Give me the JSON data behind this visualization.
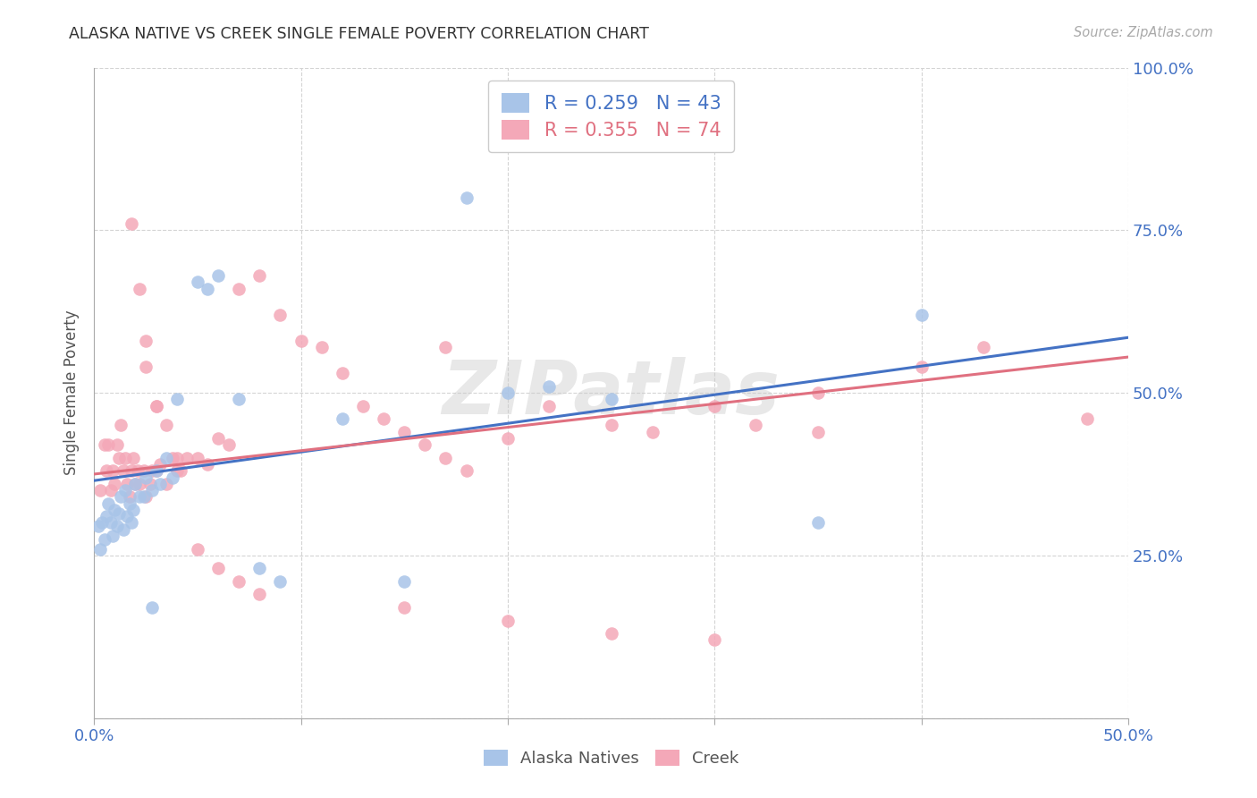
{
  "title": "ALASKA NATIVE VS CREEK SINGLE FEMALE POVERTY CORRELATION CHART",
  "source": "Source: ZipAtlas.com",
  "ylabel_label": "Single Female Poverty",
  "x_min": 0.0,
  "x_max": 0.5,
  "y_min": 0.0,
  "y_max": 1.0,
  "x_tick_positions": [
    0.0,
    0.1,
    0.2,
    0.3,
    0.4,
    0.5
  ],
  "x_tick_labels": [
    "0.0%",
    "",
    "",
    "",
    "",
    "50.0%"
  ],
  "y_tick_positions": [
    0.0,
    0.25,
    0.5,
    0.75,
    1.0
  ],
  "y_tick_labels": [
    "",
    "25.0%",
    "50.0%",
    "75.0%",
    "100.0%"
  ],
  "alaska_R": 0.259,
  "alaska_N": 43,
  "creek_R": 0.355,
  "creek_N": 74,
  "alaska_color": "#a8c4e8",
  "creek_color": "#f4a8b8",
  "alaska_line_color": "#4472c4",
  "creek_line_color": "#e07080",
  "watermark": "ZIPatlas",
  "alaska_line_x0": 0.0,
  "alaska_line_y0": 0.365,
  "alaska_line_x1": 0.5,
  "alaska_line_y1": 0.585,
  "creek_line_x0": 0.0,
  "creek_line_y0": 0.375,
  "creek_line_x1": 0.5,
  "creek_line_y1": 0.555,
  "alaska_x": [
    0.002,
    0.003,
    0.004,
    0.005,
    0.006,
    0.007,
    0.008,
    0.009,
    0.01,
    0.011,
    0.012,
    0.013,
    0.014,
    0.015,
    0.016,
    0.017,
    0.018,
    0.019,
    0.02,
    0.022,
    0.024,
    0.025,
    0.028,
    0.03,
    0.032,
    0.035,
    0.038,
    0.04,
    0.05,
    0.055,
    0.06,
    0.07,
    0.08,
    0.09,
    0.12,
    0.15,
    0.18,
    0.2,
    0.22,
    0.25,
    0.35,
    0.4,
    0.028
  ],
  "alaska_y": [
    0.295,
    0.26,
    0.3,
    0.275,
    0.31,
    0.33,
    0.3,
    0.28,
    0.32,
    0.295,
    0.315,
    0.34,
    0.29,
    0.35,
    0.31,
    0.33,
    0.3,
    0.32,
    0.36,
    0.34,
    0.34,
    0.37,
    0.35,
    0.38,
    0.36,
    0.4,
    0.37,
    0.49,
    0.67,
    0.66,
    0.68,
    0.49,
    0.23,
    0.21,
    0.46,
    0.21,
    0.8,
    0.5,
    0.51,
    0.49,
    0.3,
    0.62,
    0.17
  ],
  "creek_x": [
    0.003,
    0.005,
    0.006,
    0.007,
    0.008,
    0.009,
    0.01,
    0.011,
    0.012,
    0.013,
    0.014,
    0.015,
    0.016,
    0.017,
    0.018,
    0.019,
    0.02,
    0.021,
    0.022,
    0.024,
    0.025,
    0.027,
    0.028,
    0.03,
    0.032,
    0.035,
    0.038,
    0.04,
    0.042,
    0.045,
    0.05,
    0.055,
    0.06,
    0.065,
    0.07,
    0.08,
    0.09,
    0.1,
    0.11,
    0.12,
    0.13,
    0.14,
    0.15,
    0.16,
    0.17,
    0.18,
    0.2,
    0.22,
    0.25,
    0.27,
    0.3,
    0.32,
    0.35,
    0.4,
    0.43,
    0.48,
    0.018,
    0.022,
    0.025,
    0.03,
    0.025,
    0.03,
    0.035,
    0.04,
    0.05,
    0.06,
    0.07,
    0.08,
    0.15,
    0.2,
    0.25,
    0.3,
    0.17,
    0.35
  ],
  "creek_y": [
    0.35,
    0.42,
    0.38,
    0.42,
    0.35,
    0.38,
    0.36,
    0.42,
    0.4,
    0.45,
    0.38,
    0.4,
    0.36,
    0.34,
    0.38,
    0.4,
    0.36,
    0.38,
    0.36,
    0.38,
    0.34,
    0.36,
    0.38,
    0.38,
    0.39,
    0.36,
    0.4,
    0.4,
    0.38,
    0.4,
    0.4,
    0.39,
    0.43,
    0.42,
    0.66,
    0.68,
    0.62,
    0.58,
    0.57,
    0.53,
    0.48,
    0.46,
    0.44,
    0.42,
    0.4,
    0.38,
    0.43,
    0.48,
    0.45,
    0.44,
    0.48,
    0.45,
    0.5,
    0.54,
    0.57,
    0.46,
    0.76,
    0.66,
    0.58,
    0.48,
    0.54,
    0.48,
    0.45,
    0.38,
    0.26,
    0.23,
    0.21,
    0.19,
    0.17,
    0.15,
    0.13,
    0.12,
    0.57,
    0.44
  ]
}
